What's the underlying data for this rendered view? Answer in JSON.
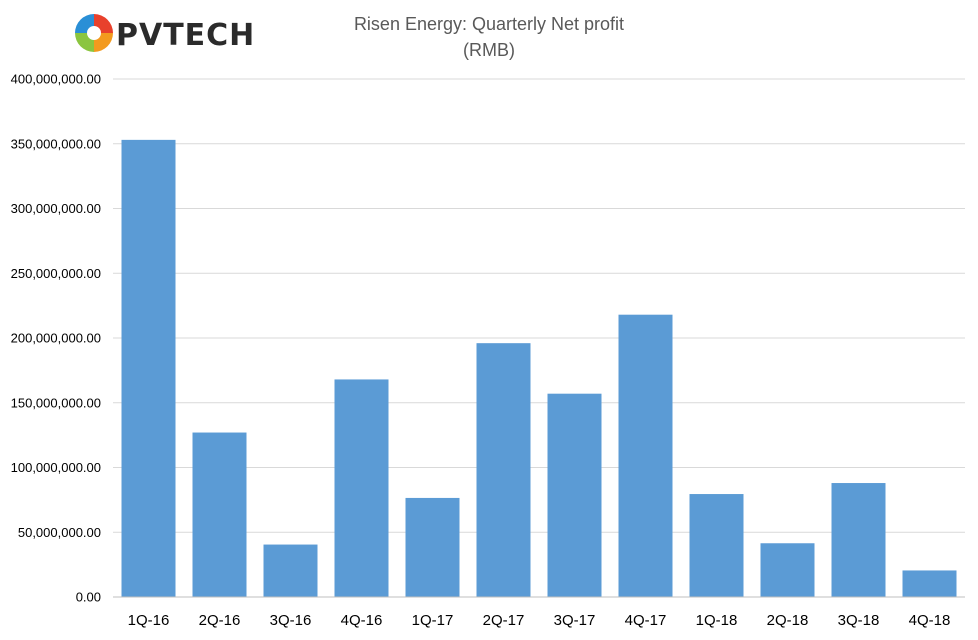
{
  "logo": {
    "text": "PVTECH",
    "colors": [
      "#e8412c",
      "#f39a1e",
      "#8bc53f",
      "#2a8fd6",
      "#6a3d9a"
    ],
    "text_color": "#2b2b2b"
  },
  "chart_data": {
    "type": "bar",
    "title": "Risen Energy: Quarterly Net profit",
    "subtitle": "(RMB)",
    "xlabel": "",
    "ylabel": "",
    "categories": [
      "1Q-16",
      "2Q-16",
      "3Q-16",
      "4Q-16",
      "1Q-17",
      "2Q-17",
      "3Q-17",
      "4Q-17",
      "1Q-18",
      "2Q-18",
      "3Q-18",
      "4Q-18"
    ],
    "values": [
      353000000,
      127000000,
      40500000,
      168000000,
      76500000,
      196000000,
      157000000,
      218000000,
      79500000,
      41500000,
      88000000,
      20500000
    ],
    "ylim": [
      0,
      400000000
    ],
    "yticks": [
      0,
      50000000,
      100000000,
      150000000,
      200000000,
      250000000,
      300000000,
      350000000,
      400000000
    ],
    "ytick_labels": [
      "0.00",
      "50,000,000.00",
      "100,000,000.00",
      "150,000,000.00",
      "200,000,000.00",
      "250,000,000.00",
      "300,000,000.00",
      "350,000,000.00",
      "400,000,000.00"
    ],
    "grid": true,
    "legend": "none",
    "bar_color": "#5b9bd5",
    "grid_color": "#d9d9d9"
  }
}
